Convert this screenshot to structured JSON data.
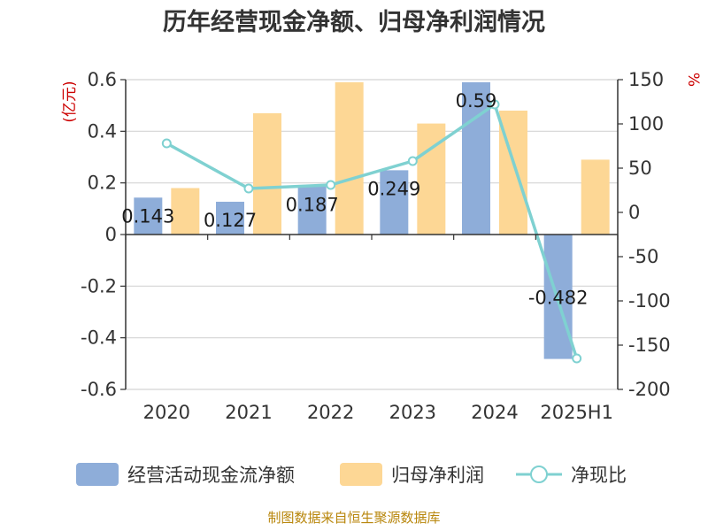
{
  "chart_data": {
    "type": "bar",
    "title": "历年经营现金净额、归母净利润情况",
    "categories": [
      "2020",
      "2021",
      "2022",
      "2023",
      "2024",
      "2025H1"
    ],
    "series": [
      {
        "name": "经营活动现金流净额",
        "type": "bar",
        "axis": "left",
        "color": "#8eadd9",
        "values": [
          0.143,
          0.127,
          0.187,
          0.249,
          0.59,
          -0.482
        ]
      },
      {
        "name": "归母净利润",
        "type": "bar",
        "axis": "left",
        "color": "#fdd795",
        "values": [
          0.18,
          0.47,
          0.59,
          0.43,
          0.48,
          0.29
        ]
      },
      {
        "name": "净现比",
        "type": "line",
        "axis": "right",
        "color": "#7fd1d1",
        "values": [
          78,
          27,
          31,
          58,
          122,
          -165
        ]
      }
    ],
    "data_labels": [
      "0.143",
      "0.127",
      "0.187",
      "0.249",
      "0.59",
      "-0.482"
    ],
    "y_left": {
      "unit": "(亿元)",
      "ylim": [
        -0.6,
        0.6
      ],
      "ticks": [
        0.6,
        0.4,
        0.2,
        0,
        -0.2,
        -0.4,
        -0.6
      ],
      "tick_labels": [
        "0.6",
        "0.4",
        "0.2",
        "0",
        "-0.2",
        "-0.4",
        "-0.6"
      ]
    },
    "y_right": {
      "unit": "%",
      "ylim": [
        -200,
        150
      ],
      "ticks": [
        150,
        100,
        50,
        0,
        -50,
        -100,
        -150,
        -200
      ],
      "tick_labels": [
        "150",
        "100",
        "50",
        "0",
        "-50",
        "-100",
        "-150",
        "-200"
      ]
    },
    "grid": true,
    "legend_position": "bottom"
  },
  "source": "制图数据来自恒生聚源数据库"
}
